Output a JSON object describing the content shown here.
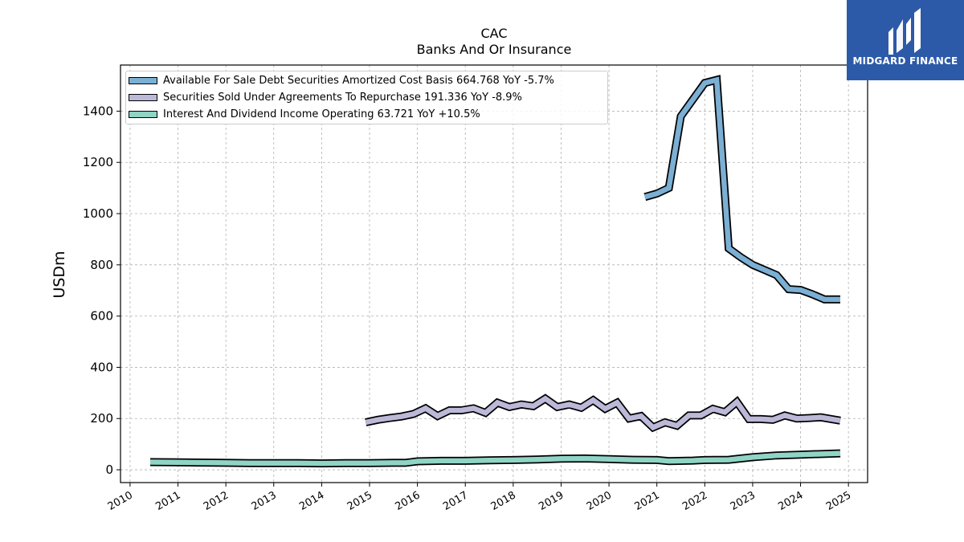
{
  "logo": {
    "text": "MIDGARD FINANCE",
    "icon": "midgard-logo-mark"
  },
  "chart_data": {
    "type": "line",
    "title": "CAC",
    "subtitle": "Banks And Or Insurance",
    "ylabel": "USDm",
    "xlabel": "",
    "xlim": [
      2009.8,
      2025.4
    ],
    "ylim": [
      -50,
      1580
    ],
    "xticks": [
      2010,
      2011,
      2012,
      2013,
      2014,
      2015,
      2016,
      2017,
      2018,
      2019,
      2020,
      2021,
      2022,
      2023,
      2024,
      2025
    ],
    "yticks": [
      0,
      200,
      400,
      600,
      800,
      1000,
      1200,
      1400
    ],
    "grid": true,
    "legend_position": "top-left",
    "series": [
      {
        "name": "Available For Sale Debt Securities Amortized Cost Basis  664.768 YoY -5.7%",
        "color": "#7bafd4",
        "x": [
          2020.75,
          2021.0,
          2021.25,
          2021.5,
          2021.75,
          2022.0,
          2022.25,
          2022.5,
          2022.75,
          2023.0,
          2023.25,
          2023.5,
          2023.75,
          2024.0,
          2024.25,
          2024.5,
          2024.83
        ],
        "values": [
          1065,
          1078,
          1100,
          1380,
          1445,
          1510,
          1522,
          864,
          830,
          800,
          780,
          760,
          705,
          702,
          685,
          665,
          665
        ]
      },
      {
        "name": "Securities Sold Under Agreements To Repurchase  191.336 YoY -8.9%",
        "color": "#bcb8d8",
        "x": [
          2014.92,
          2015.17,
          2015.42,
          2015.67,
          2015.92,
          2016.17,
          2016.42,
          2016.67,
          2016.92,
          2017.17,
          2017.42,
          2017.67,
          2017.92,
          2018.17,
          2018.42,
          2018.67,
          2018.92,
          2019.17,
          2019.42,
          2019.67,
          2019.92,
          2020.17,
          2020.42,
          2020.67,
          2020.92,
          2021.17,
          2021.42,
          2021.67,
          2021.92,
          2022.17,
          2022.42,
          2022.67,
          2022.92,
          2023.17,
          2023.42,
          2023.67,
          2023.92,
          2024.17,
          2024.42,
          2024.83
        ],
        "values": [
          185,
          195,
          202,
          208,
          218,
          240,
          210,
          232,
          232,
          240,
          222,
          262,
          245,
          255,
          248,
          278,
          245,
          255,
          242,
          272,
          238,
          262,
          200,
          210,
          165,
          185,
          172,
          212,
          212,
          238,
          225,
          265,
          198,
          198,
          195,
          212,
          200,
          202,
          205,
          192
        ]
      },
      {
        "name": "Interest And Dividend Income Operating  63.721 YoY +10.5%",
        "color": "#8fd4c4",
        "x": [
          2010.42,
          2011.0,
          2011.5,
          2012.0,
          2012.5,
          2013.0,
          2013.5,
          2014.0,
          2014.5,
          2015.0,
          2015.5,
          2015.75,
          2016.0,
          2016.5,
          2017.0,
          2017.5,
          2018.0,
          2018.5,
          2019.0,
          2019.5,
          2020.0,
          2020.5,
          2021.0,
          2021.25,
          2021.75,
          2022.0,
          2022.5,
          2023.0,
          2023.5,
          2024.0,
          2024.83
        ],
        "values": [
          30,
          29,
          28,
          27,
          26,
          26,
          26,
          25,
          26,
          26,
          27,
          27,
          33,
          35,
          35,
          37,
          38,
          40,
          43,
          44,
          42,
          39,
          38,
          34,
          36,
          38,
          39,
          49,
          56,
          59,
          64
        ]
      }
    ]
  }
}
